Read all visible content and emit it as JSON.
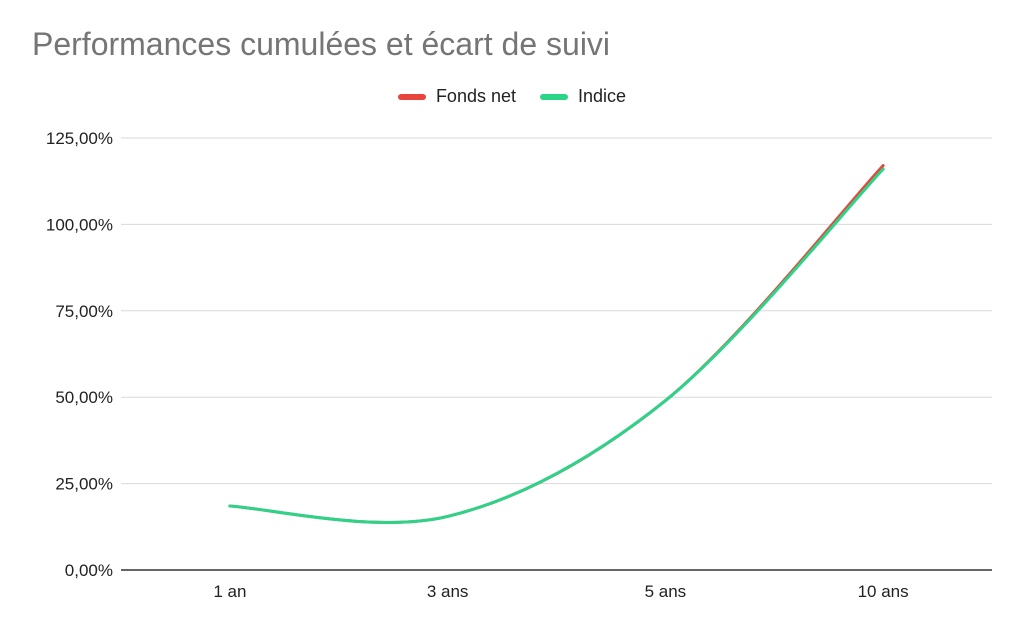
{
  "chart_data": {
    "type": "line",
    "title": "Performances cumulées et écart de suivi",
    "categories": [
      "1 an",
      "3 ans",
      "5 ans",
      "10 ans"
    ],
    "series": [
      {
        "name": "Fonds net",
        "color": "#e8453c",
        "values": [
          18.5,
          15.5,
          49.0,
          117.0
        ]
      },
      {
        "name": "Indice",
        "color": "#2ad58a",
        "values": [
          18.5,
          15.5,
          49.0,
          116.0
        ]
      }
    ],
    "y_ticks": [
      "0,00%",
      "25,00%",
      "50,00%",
      "75,00%",
      "100,00%",
      "125,00%"
    ],
    "ylim": [
      0,
      125
    ],
    "grid": true,
    "legend_position": "top-center"
  }
}
